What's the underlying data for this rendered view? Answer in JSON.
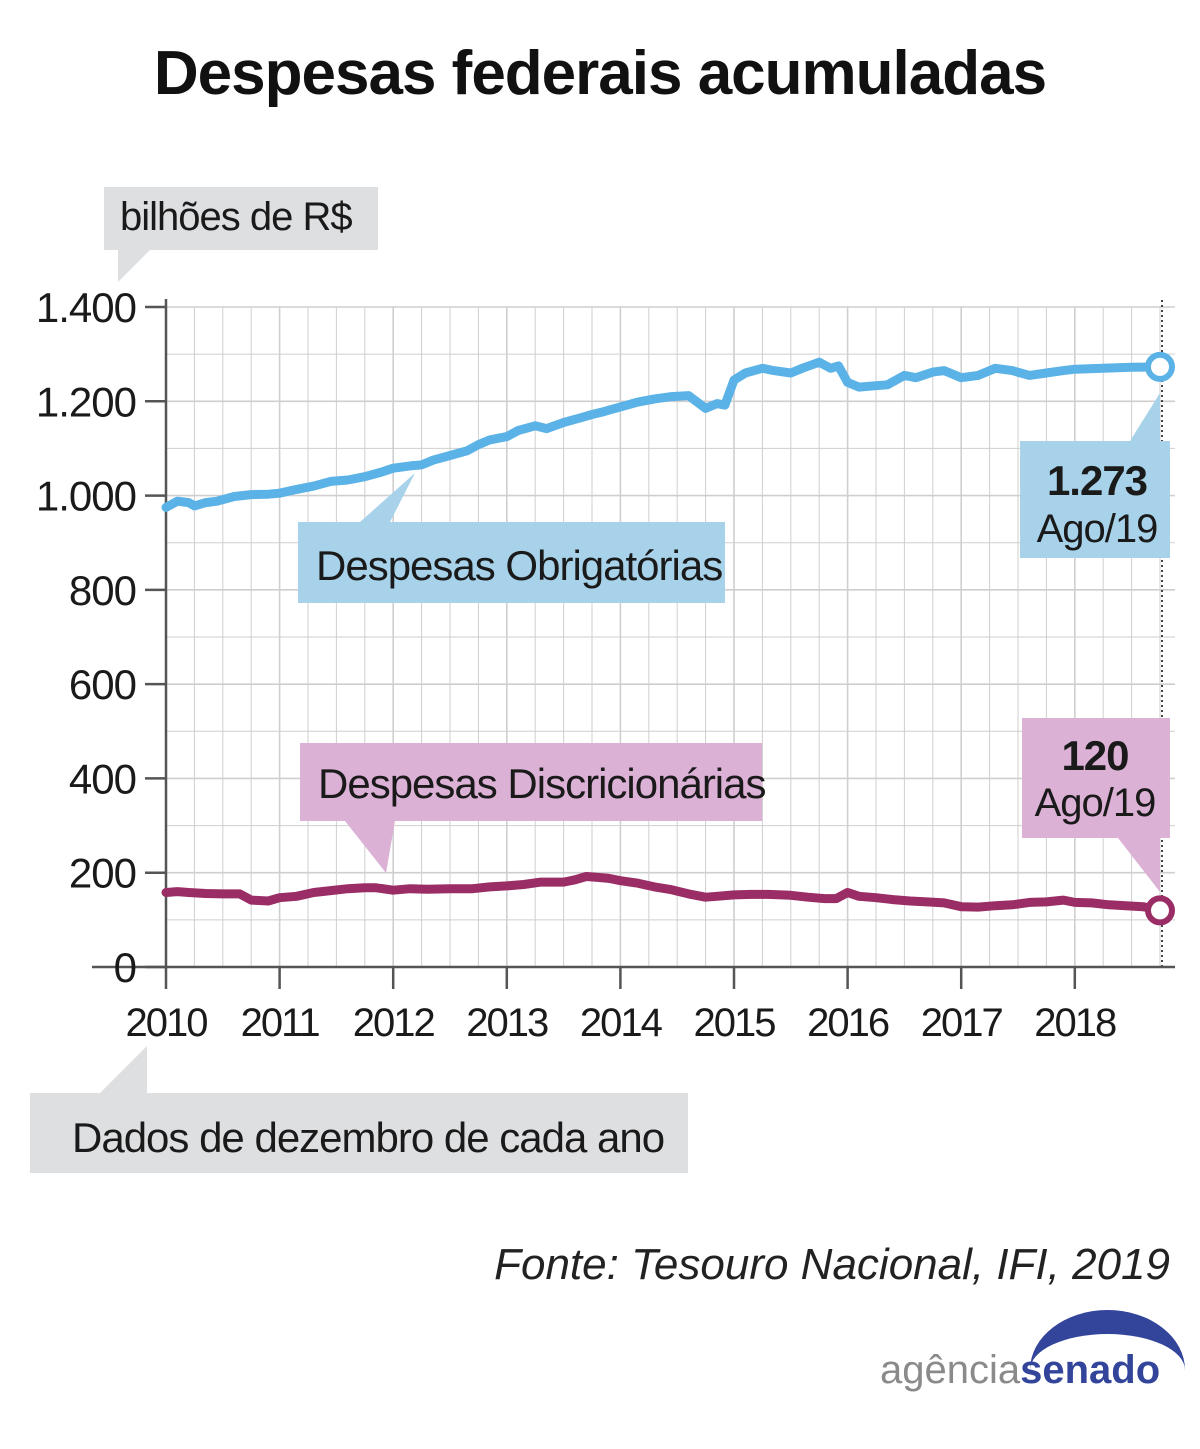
{
  "title": "Despesas federais acumuladas",
  "unit_label": "bilhões de R$",
  "note": "Dados de dezembro de cada ano",
  "source": "Fonte: Tesouro Nacional, IFI, 2019",
  "logo": {
    "part1": "agência",
    "part2": "senado"
  },
  "colors": {
    "obrigatorias_line": "#5bb2e6",
    "obrigatorias_box": "#a7d2ea",
    "discricionarias_line": "#9a2d66",
    "discricionarias_box": "#dcb1d6",
    "label_box_gray": "#dedfe1",
    "grid": "#cfcfcf",
    "logo_blue": "#33459a",
    "logo_gray": "#8a8a8a"
  },
  "chart_data": {
    "type": "line",
    "title": "Despesas federais acumuladas",
    "ylabel": "bilhões de R$",
    "ylim": [
      0,
      1400
    ],
    "yticks": [
      0,
      200,
      400,
      600,
      800,
      1000,
      1200,
      1400
    ],
    "ytick_labels": [
      "0",
      "200",
      "400",
      "600",
      "800",
      "1.000",
      "1.200",
      "1.400"
    ],
    "xlim": [
      2010,
      2018.75
    ],
    "xticks": [
      2010,
      2011,
      2012,
      2013,
      2014,
      2015,
      2016,
      2017,
      2018
    ],
    "xtick_labels": [
      "2010",
      "2011",
      "2012",
      "2013",
      "2014",
      "2015",
      "2016",
      "2017",
      "2018"
    ],
    "grid": true,
    "series": [
      {
        "name": "Despesas Obrigatórias",
        "end_value_label": "1.273",
        "end_period_label": "Ago/19",
        "x": [
          2010.0,
          2010.1,
          2010.2,
          2010.25,
          2010.35,
          2010.45,
          2010.6,
          2010.75,
          2010.9,
          2011.0,
          2011.15,
          2011.3,
          2011.45,
          2011.6,
          2011.75,
          2011.9,
          2012.0,
          2012.15,
          2012.25,
          2012.35,
          2012.5,
          2012.65,
          2012.75,
          2012.85,
          2013.0,
          2013.1,
          2013.25,
          2013.35,
          2013.5,
          2013.65,
          2013.75,
          2013.85,
          2014.0,
          2014.15,
          2014.3,
          2014.45,
          2014.6,
          2014.75,
          2014.85,
          2014.92,
          2015.0,
          2015.1,
          2015.25,
          2015.35,
          2015.5,
          2015.6,
          2015.75,
          2015.85,
          2015.92,
          2016.0,
          2016.1,
          2016.25,
          2016.35,
          2016.5,
          2016.6,
          2016.75,
          2016.85,
          2017.0,
          2017.15,
          2017.3,
          2017.45,
          2017.6,
          2017.75,
          2017.9,
          2018.0,
          2018.25,
          2018.5,
          2018.75
        ],
        "y": [
          975,
          988,
          985,
          978,
          985,
          988,
          998,
          1002,
          1003,
          1005,
          1013,
          1020,
          1030,
          1033,
          1040,
          1050,
          1058,
          1063,
          1065,
          1075,
          1085,
          1095,
          1108,
          1118,
          1125,
          1138,
          1148,
          1142,
          1155,
          1165,
          1172,
          1178,
          1188,
          1198,
          1205,
          1210,
          1212,
          1185,
          1195,
          1192,
          1245,
          1260,
          1270,
          1265,
          1260,
          1270,
          1283,
          1270,
          1275,
          1240,
          1230,
          1233,
          1235,
          1255,
          1250,
          1262,
          1265,
          1250,
          1255,
          1270,
          1265,
          1255,
          1260,
          1265,
          1268,
          1270,
          1272,
          1273
        ]
      },
      {
        "name": "Despesas Discricionárias",
        "end_value_label": "120",
        "end_period_label": "Ago/19",
        "x": [
          2010.0,
          2010.1,
          2010.2,
          2010.35,
          2010.5,
          2010.65,
          2010.75,
          2010.9,
          2011.0,
          2011.15,
          2011.3,
          2011.45,
          2011.6,
          2011.75,
          2011.85,
          2012.0,
          2012.15,
          2012.3,
          2012.5,
          2012.7,
          2012.85,
          2013.0,
          2013.15,
          2013.3,
          2013.5,
          2013.6,
          2013.7,
          2013.8,
          2013.9,
          2014.0,
          2014.15,
          2014.3,
          2014.45,
          2014.6,
          2014.75,
          2014.85,
          2015.0,
          2015.15,
          2015.3,
          2015.5,
          2015.65,
          2015.8,
          2015.9,
          2016.0,
          2016.1,
          2016.25,
          2016.4,
          2016.55,
          2016.7,
          2016.85,
          2017.0,
          2017.15,
          2017.3,
          2017.45,
          2017.6,
          2017.75,
          2017.9,
          2018.0,
          2018.15,
          2018.3,
          2018.45,
          2018.6,
          2018.75
        ],
        "y": [
          158,
          160,
          158,
          156,
          155,
          155,
          142,
          140,
          147,
          150,
          158,
          162,
          166,
          168,
          168,
          163,
          166,
          165,
          166,
          166,
          170,
          172,
          175,
          180,
          180,
          185,
          192,
          190,
          188,
          183,
          178,
          170,
          164,
          155,
          148,
          150,
          153,
          154,
          154,
          152,
          148,
          145,
          145,
          158,
          150,
          147,
          143,
          140,
          138,
          136,
          128,
          127,
          130,
          132,
          137,
          138,
          142,
          137,
          136,
          132,
          130,
          128,
          120
        ]
      }
    ]
  }
}
